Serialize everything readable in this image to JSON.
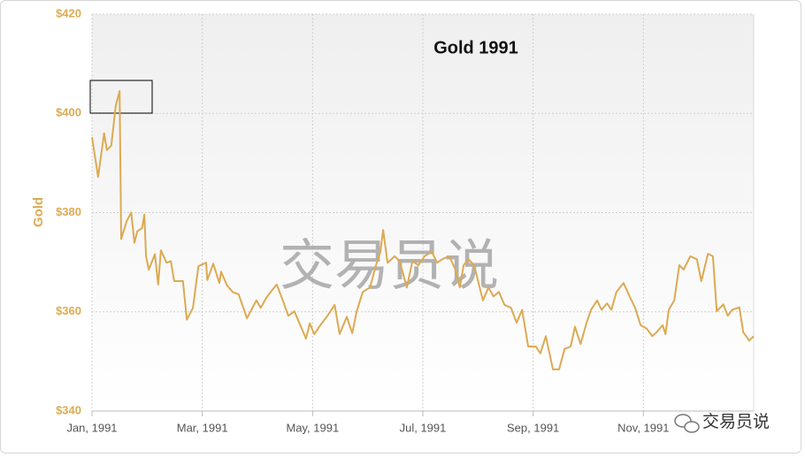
{
  "chart_data": {
    "type": "line",
    "title": "Gold 1991",
    "ylabel": "Gold",
    "watermark": "交易员说",
    "footer": "交易员说",
    "xlim": [
      0,
      12
    ],
    "xticks": [
      {
        "value": 0,
        "label": "Jan, 1991"
      },
      {
        "value": 2,
        "label": "Mar, 1991"
      },
      {
        "value": 4,
        "label": "May, 1991"
      },
      {
        "value": 6,
        "label": "Jul, 1991"
      },
      {
        "value": 8,
        "label": "Sep, 1991"
      },
      {
        "value": 10,
        "label": "Nov, 1991"
      }
    ],
    "ylim": [
      340,
      420
    ],
    "yticks": [
      {
        "value": 340,
        "label": "$340"
      },
      {
        "value": 360,
        "label": "$360"
      },
      {
        "value": 380,
        "label": "$380"
      },
      {
        "value": 400,
        "label": "$400"
      },
      {
        "value": 420,
        "label": "$420"
      }
    ],
    "grid": true,
    "x": [
      0,
      0.11,
      0.22,
      0.27,
      0.35,
      0.43,
      0.5,
      0.53,
      0.63,
      0.71,
      0.77,
      0.82,
      0.91,
      0.95,
      0.98,
      1.03,
      1.14,
      1.2,
      1.25,
      1.35,
      1.43,
      1.49,
      1.65,
      1.72,
      1.83,
      1.93,
      2.07,
      2.09,
      2.2,
      2.31,
      2.34,
      2.45,
      2.55,
      2.66,
      2.81,
      2.98,
      3.06,
      3.16,
      3.24,
      3.35,
      3.46,
      3.56,
      3.67,
      3.79,
      3.88,
      3.95,
      4.03,
      4.14,
      4.27,
      4.4,
      4.49,
      4.62,
      4.72,
      4.8,
      4.91,
      5.04,
      5.15,
      5.23,
      5.28,
      5.36,
      5.49,
      5.58,
      5.71,
      5.81,
      5.92,
      6.03,
      6.16,
      6.26,
      6.35,
      6.48,
      6.59,
      6.67,
      6.74,
      6.83,
      6.93,
      7.01,
      7.09,
      7.19,
      7.28,
      7.38,
      7.48,
      7.6,
      7.7,
      7.8,
      7.91,
      8.05,
      8.13,
      8.23,
      8.29,
      8.36,
      8.47,
      8.57,
      8.68,
      8.76,
      8.86,
      8.97,
      9.05,
      9.16,
      9.24,
      9.34,
      9.42,
      9.51,
      9.64,
      9.75,
      9.85,
      9.95,
      10.06,
      10.16,
      10.25,
      10.35,
      10.4,
      10.46,
      10.56,
      10.65,
      10.73,
      10.85,
      10.97,
      11.05,
      11.17,
      11.26,
      11.33,
      11.45,
      11.53,
      11.61,
      11.74,
      11.81,
      11.92,
      12.0
    ],
    "series": [
      {
        "name": "Gold",
        "color": "#dcaa52",
        "values": [
          395.2,
          387.2,
          396,
          392.6,
          393.5,
          401.5,
          404.5,
          374.7,
          378.3,
          380,
          373.9,
          376.2,
          376.9,
          379.6,
          371.2,
          368.5,
          371.6,
          365.5,
          372.4,
          369.9,
          370.2,
          366.2,
          366.2,
          358.4,
          360.8,
          369.2,
          369.9,
          366.4,
          369.7,
          365.8,
          368.1,
          365.3,
          364,
          363.5,
          358.7,
          362.3,
          360.8,
          362.8,
          364,
          365.5,
          362.3,
          359.2,
          360.1,
          357,
          354.6,
          357.7,
          355.5,
          357.3,
          359.2,
          361.4,
          355.5,
          359,
          355.7,
          360.1,
          364,
          364.9,
          369.4,
          372.1,
          376.5,
          369.9,
          371.2,
          370.2,
          364.9,
          370.2,
          369.4,
          371.2,
          372.1,
          369.9,
          370.6,
          371.2,
          368.5,
          364.9,
          369.4,
          370.6,
          369.4,
          365.8,
          362.3,
          364.9,
          363.1,
          364,
          361.4,
          360.8,
          357.8,
          360.4,
          353,
          353,
          351.6,
          355.1,
          352,
          348.4,
          348.4,
          352.5,
          353,
          357,
          353.5,
          357.8,
          360.4,
          362.3,
          360.4,
          361.7,
          360.4,
          364,
          365.8,
          363.1,
          360.8,
          357.3,
          356.6,
          355.1,
          356,
          357.3,
          355.5,
          360.4,
          362.3,
          369.4,
          368.5,
          371.2,
          370.6,
          366.2,
          371.7,
          371.2,
          360.1,
          361.5,
          359.2,
          360.4,
          360.9,
          355.9,
          354.2,
          355.1
        ]
      }
    ]
  }
}
